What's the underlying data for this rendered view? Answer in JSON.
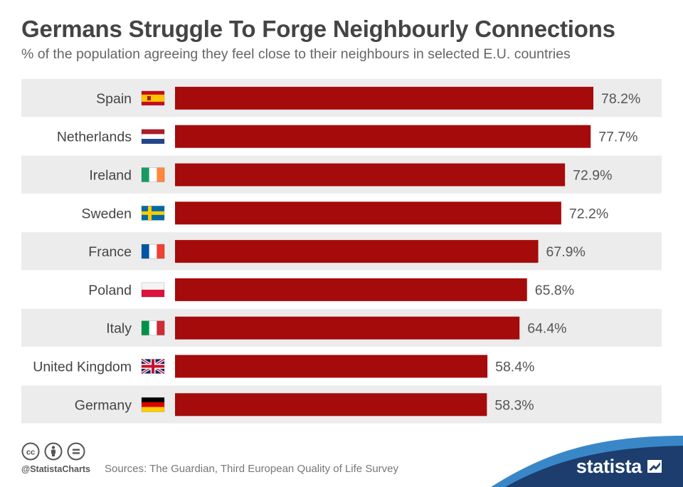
{
  "header": {
    "title": "Germans Struggle To Forge Neighbourly Connections",
    "subtitle": "% of the population agreeing they feel close to their neighbours in selected E.U. countries"
  },
  "chart_data": {
    "type": "bar",
    "orientation": "horizontal",
    "title": "Germans Struggle To Forge Neighbourly Connections",
    "subtitle": "% of the population agreeing they feel close to their neighbours in selected E.U. countries",
    "categories": [
      "Spain",
      "Netherlands",
      "Ireland",
      "Sweden",
      "France",
      "Poland",
      "Italy",
      "United Kingdom",
      "Germany"
    ],
    "values": [
      78.2,
      77.7,
      72.9,
      72.2,
      67.9,
      65.8,
      64.4,
      58.4,
      58.3
    ],
    "value_labels": [
      "78.2%",
      "77.7%",
      "72.9%",
      "72.2%",
      "67.9%",
      "65.8%",
      "64.4%",
      "58.4%",
      "58.3%"
    ],
    "flags": [
      "spain-flag-icon",
      "netherlands-flag-icon",
      "ireland-flag-icon",
      "sweden-flag-icon",
      "france-flag-icon",
      "poland-flag-icon",
      "italy-flag-icon",
      "united-kingdom-flag-icon",
      "germany-flag-icon"
    ],
    "xlim": [
      0,
      100
    ],
    "bar_color": "#a50b0b",
    "row_band_color": "#ececec",
    "grid": false,
    "legend": "none"
  },
  "footer": {
    "handle": "@StatistaCharts",
    "sources": "Sources: The Guardian, Third European Quality of Life Survey",
    "license_icons": [
      "cc-icon",
      "attribution-icon",
      "no-derivatives-icon"
    ],
    "brand": "statista",
    "brand_color": "#1c3d6e",
    "wave_color": "#3a87c8"
  }
}
